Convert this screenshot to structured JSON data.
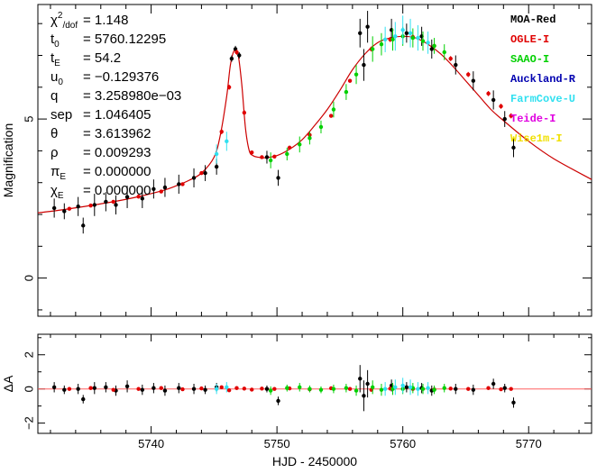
{
  "chart_data": [
    {
      "type": "scatter",
      "panel": "main",
      "xlabel": "HJD - 2450000",
      "ylabel": "Magnification",
      "xlim": [
        5731,
        5775
      ],
      "ylim": [
        -1.2,
        8.6
      ],
      "xticks": [
        5740,
        5750,
        5760,
        5770
      ],
      "yticks": [
        0,
        5
      ],
      "xtick_labels": [
        "5740",
        "5750",
        "5760",
        "5770"
      ],
      "ytick_labels": [
        "0",
        "5"
      ],
      "params": [
        {
          "name": "χ²/dof",
          "value": "1.148"
        },
        {
          "name": "t₀",
          "value": "5760.12295"
        },
        {
          "name": "t_E",
          "value": "54.2"
        },
        {
          "name": "u₀",
          "value": "-0.129376"
        },
        {
          "name": "q",
          "value": "3.258980e-03"
        },
        {
          "name": "sep",
          "value": "1.046405"
        },
        {
          "name": "θ",
          "value": "3.613962"
        },
        {
          "name": "ρ",
          "value": "0.009293"
        },
        {
          "name": "π_E",
          "value": "0.000000"
        },
        {
          "name": "χ_E",
          "value": "0.000000"
        }
      ],
      "param_labels": {
        "chi": "χ",
        "chi_sup": "2",
        "chi_sub": "/dof",
        "t": "t",
        "t_sub": "0",
        "tE_sub": "E",
        "u": "u",
        "u_sub": "0",
        "q": "q",
        "sep": "sep",
        "theta": "θ",
        "rho": "ρ",
        "pi": "π",
        "pi_sub": "E",
        "chiE": "χ",
        "chiE_sub": "E"
      },
      "param_values": [
        "= 1.148",
        "= 5760.12295",
        "= 54.2",
        "= −0.129376",
        "= 3.258980e−03",
        "= 1.046405",
        "= 3.613962",
        "= 0.009293",
        "= 0.000000",
        "= 0.000000"
      ],
      "legend": [
        {
          "name": "MOA-Red",
          "color": "#000000"
        },
        {
          "name": "OGLE-I",
          "color": "#e00000"
        },
        {
          "name": "SAAO-I",
          "color": "#00d000"
        },
        {
          "name": "Auckland-R",
          "color": "#0000b0"
        },
        {
          "name": "FarmCove-U",
          "color": "#30e0f0"
        },
        {
          "name": "Teide-I",
          "color": "#e000e0"
        },
        {
          "name": "Wise1m-I",
          "color": "#f0e000"
        }
      ],
      "model_curve": {
        "color": "#cc0000",
        "x": [
          5731,
          5733,
          5735,
          5737,
          5739,
          5741,
          5742,
          5743,
          5744,
          5745,
          5745.5,
          5746,
          5746.3,
          5746.6,
          5746.9,
          5747.2,
          5747.5,
          5747.8,
          5748.1,
          5748.5,
          5749,
          5750,
          5751,
          5752,
          5753,
          5754,
          5755,
          5756,
          5757,
          5758,
          5759,
          5760,
          5761,
          5762,
          5763,
          5764,
          5765,
          5766,
          5767,
          5768,
          5770,
          5772,
          5775
        ],
        "y": [
          2.05,
          2.15,
          2.27,
          2.4,
          2.56,
          2.76,
          2.9,
          3.07,
          3.3,
          3.8,
          4.5,
          5.7,
          6.7,
          7.15,
          7.05,
          6.1,
          4.7,
          4.0,
          3.85,
          3.8,
          3.78,
          3.85,
          4.05,
          4.35,
          4.8,
          5.3,
          5.9,
          6.55,
          7.05,
          7.4,
          7.55,
          7.6,
          7.55,
          7.35,
          7.05,
          6.65,
          6.2,
          5.75,
          5.3,
          4.95,
          4.3,
          3.75,
          3.1
        ]
      },
      "observations": {
        "MOA-Red": {
          "x": [
            5732.3,
            5733.1,
            5734.2,
            5734.6,
            5735.5,
            5736.4,
            5737.2,
            5738.1,
            5739.3,
            5740.2,
            5741.1,
            5742.2,
            5743.4,
            5744.3,
            5745.2,
            5746.4,
            5746.7,
            5747.0,
            5749.2,
            5750.1,
            5756.6,
            5756.9,
            5757.2,
            5759.1,
            5760.3,
            5761.5,
            5762.3,
            5764.2,
            5765.6,
            5767.2,
            5768.1,
            5768.8
          ],
          "y": [
            2.2,
            2.1,
            2.25,
            1.65,
            2.3,
            2.4,
            2.3,
            2.55,
            2.5,
            2.8,
            2.85,
            2.95,
            3.15,
            3.3,
            3.5,
            6.9,
            7.2,
            7.0,
            3.8,
            3.15,
            7.7,
            6.7,
            7.9,
            7.8,
            7.7,
            7.6,
            7.2,
            6.7,
            6.2,
            5.6,
            5.0,
            4.1
          ],
          "err": [
            0.3,
            0.25,
            0.3,
            0.25,
            0.35,
            0.3,
            0.3,
            0.35,
            0.3,
            0.3,
            0.3,
            0.3,
            0.3,
            0.25,
            0.25,
            0.1,
            0.1,
            0.1,
            0.2,
            0.25,
            0.45,
            0.5,
            0.5,
            0.35,
            0.3,
            0.3,
            0.3,
            0.3,
            0.3,
            0.3,
            0.25,
            0.3
          ]
        },
        "OGLE-I": {
          "x": [
            5733.5,
            5735.2,
            5737.0,
            5739.0,
            5740.8,
            5742.5,
            5744.0,
            5745.6,
            5746.2,
            5746.8,
            5747.4,
            5748.0,
            5748.8,
            5749.8,
            5751.0,
            5752.6,
            5754.3,
            5755.8,
            5757.5,
            5759.0,
            5760.8,
            5762.5,
            5763.8,
            5765.2,
            5766.8,
            5767.8,
            5768.6
          ],
          "y": [
            2.18,
            2.28,
            2.4,
            2.56,
            2.72,
            2.95,
            3.3,
            4.6,
            6.0,
            7.1,
            5.2,
            3.95,
            3.8,
            3.82,
            4.1,
            4.5,
            5.1,
            6.2,
            7.2,
            7.5,
            7.58,
            7.3,
            6.9,
            6.4,
            5.8,
            5.4,
            5.1
          ],
          "err": [
            0.05,
            0.05,
            0.05,
            0.05,
            0.05,
            0.05,
            0.05,
            0.08,
            0.08,
            0.08,
            0.08,
            0.05,
            0.05,
            0.05,
            0.05,
            0.05,
            0.06,
            0.06,
            0.08,
            0.08,
            0.08,
            0.08,
            0.08,
            0.08,
            0.08,
            0.08,
            0.08
          ]
        },
        "SAAO-I": {
          "x": [
            5749.5,
            5750.8,
            5751.8,
            5752.6,
            5753.5,
            5754.5,
            5755.5,
            5756.3,
            5757.6,
            5758.3,
            5759.2,
            5760.0,
            5760.8,
            5761.6,
            5762.5,
            5763.3
          ],
          "y": [
            3.7,
            3.9,
            4.2,
            4.4,
            4.75,
            5.3,
            5.85,
            6.4,
            7.2,
            7.35,
            7.5,
            7.6,
            7.55,
            7.45,
            7.3,
            7.1
          ],
          "err": [
            0.25,
            0.2,
            0.25,
            0.2,
            0.2,
            0.25,
            0.25,
            0.3,
            0.4,
            0.35,
            0.35,
            0.3,
            0.3,
            0.3,
            0.25,
            0.25
          ]
        },
        "FarmCove-U": {
          "x": [
            5745.2,
            5746.0,
            5758.6,
            5759.4,
            5760.0,
            5760.6,
            5761.2,
            5762.0
          ],
          "y": [
            3.9,
            4.3,
            7.5,
            7.6,
            7.8,
            7.7,
            7.55,
            7.4
          ],
          "err": [
            0.3,
            0.3,
            0.4,
            0.45,
            0.45,
            0.45,
            0.4,
            0.35
          ]
        }
      }
    },
    {
      "type": "scatter",
      "panel": "residual",
      "ylabel": "ΔA",
      "xlim": [
        5731,
        5775
      ],
      "ylim": [
        -2.6,
        3.2
      ],
      "yticks": [
        -2,
        0,
        2
      ],
      "ytick_labels": [
        "−2",
        "0",
        "2"
      ],
      "zero_line_color": "#ff6060",
      "observations": {
        "MOA-Red": {
          "x": [
            5732.3,
            5733.1,
            5734.2,
            5734.6,
            5735.5,
            5736.4,
            5737.2,
            5738.1,
            5739.3,
            5740.2,
            5741.1,
            5742.2,
            5743.4,
            5744.3,
            5745.2,
            5749.2,
            5750.1,
            5756.6,
            5756.9,
            5757.2,
            5759.1,
            5760.3,
            5761.5,
            5762.3,
            5764.2,
            5765.6,
            5767.2,
            5768.1,
            5768.8
          ],
          "y": [
            0.1,
            -0.05,
            0.0,
            -0.6,
            0.05,
            0.1,
            -0.1,
            0.15,
            -0.05,
            0.05,
            -0.1,
            0.05,
            0.0,
            -0.05,
            0.1,
            0.0,
            -0.7,
            0.6,
            -0.4,
            0.3,
            0.2,
            0.1,
            0.05,
            -0.1,
            0.0,
            -0.05,
            0.3,
            0.05,
            -0.8
          ],
          "err": [
            0.3,
            0.25,
            0.3,
            0.25,
            0.35,
            0.3,
            0.3,
            0.35,
            0.3,
            0.3,
            0.3,
            0.3,
            0.3,
            0.25,
            0.25,
            0.2,
            0.25,
            0.8,
            0.9,
            0.8,
            0.35,
            0.3,
            0.3,
            0.3,
            0.3,
            0.3,
            0.3,
            0.25,
            0.3
          ]
        },
        "OGLE-I": {
          "x": [
            5733.5,
            5735.2,
            5737.0,
            5739.0,
            5740.8,
            5742.5,
            5744.0,
            5745.6,
            5746.2,
            5746.8,
            5747.4,
            5748.0,
            5748.8,
            5749.8,
            5751.0,
            5752.6,
            5754.3,
            5755.8,
            5757.5,
            5759.0,
            5760.8,
            5762.5,
            5763.8,
            5765.2,
            5766.8,
            5767.8,
            5768.6
          ],
          "y": [
            0.0,
            0.05,
            -0.05,
            0.0,
            0.05,
            -0.02,
            0.03,
            0.1,
            -0.08,
            0.05,
            0.02,
            -0.04,
            0.02,
            0.0,
            0.03,
            -0.02,
            0.04,
            0.0,
            -0.05,
            0.02,
            0.0,
            -0.03,
            0.02,
            0.0,
            0.05,
            -0.02,
            0.0
          ],
          "err": [
            0.05,
            0.05,
            0.05,
            0.05,
            0.05,
            0.05,
            0.05,
            0.08,
            0.08,
            0.08,
            0.08,
            0.05,
            0.05,
            0.05,
            0.05,
            0.05,
            0.06,
            0.06,
            0.08,
            0.08,
            0.08,
            0.08,
            0.08,
            0.08,
            0.08,
            0.08,
            0.08
          ]
        },
        "SAAO-I": {
          "x": [
            5749.5,
            5750.8,
            5751.8,
            5752.6,
            5753.5,
            5754.5,
            5755.5,
            5756.3,
            5757.6,
            5758.3,
            5759.2,
            5760.0,
            5760.8,
            5761.6,
            5762.5,
            5763.3
          ],
          "y": [
            -0.1,
            0.05,
            0.1,
            0.0,
            -0.05,
            0.0,
            0.05,
            -0.1,
            0.1,
            -0.05,
            0.0,
            0.0,
            0.05,
            0.0,
            -0.05,
            0.05
          ],
          "err": [
            0.25,
            0.2,
            0.25,
            0.2,
            0.2,
            0.25,
            0.25,
            0.3,
            0.4,
            0.35,
            0.35,
            0.3,
            0.3,
            0.3,
            0.25,
            0.25
          ]
        },
        "FarmCove-U": {
          "x": [
            5745.2,
            5746.0,
            5758.6,
            5759.4,
            5760.0,
            5760.6,
            5761.2,
            5762.0
          ],
          "y": [
            0.0,
            0.1,
            0.0,
            0.1,
            0.2,
            0.1,
            0.0,
            0.05
          ],
          "err": [
            0.3,
            0.3,
            0.4,
            0.45,
            0.45,
            0.45,
            0.4,
            0.35
          ]
        }
      }
    }
  ]
}
